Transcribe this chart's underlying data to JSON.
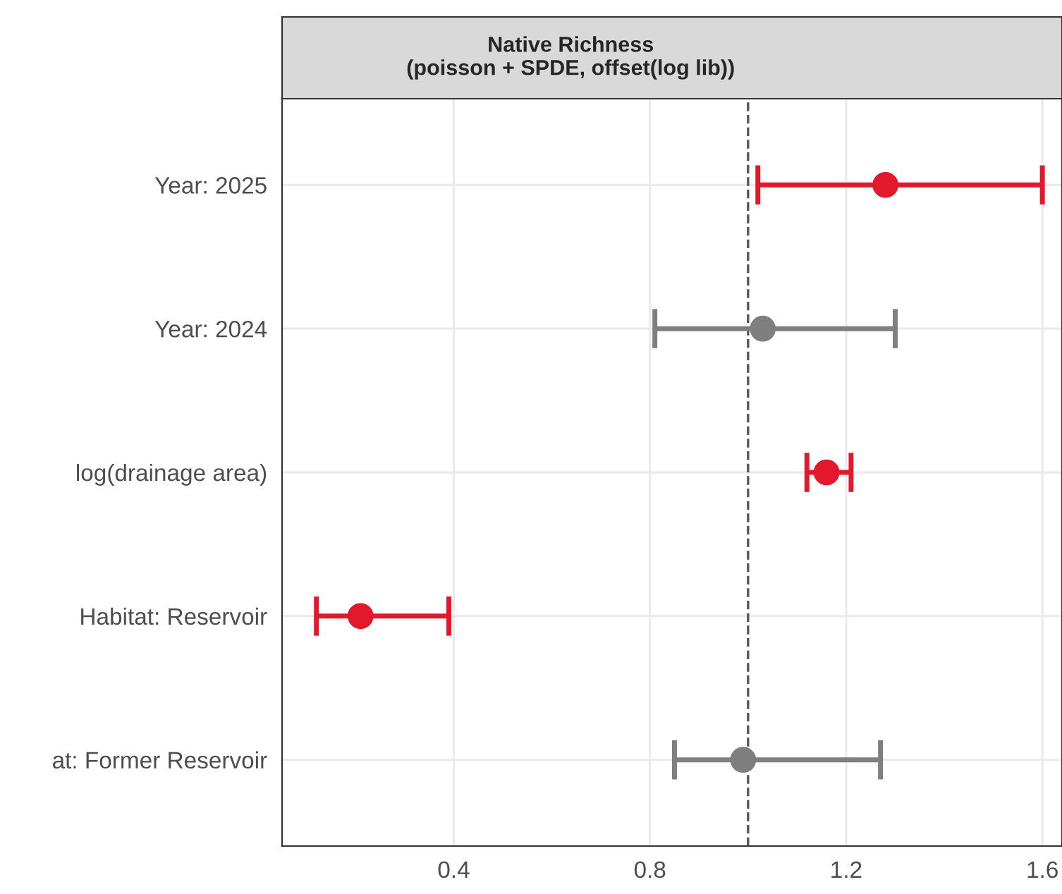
{
  "chart_data": {
    "type": "scatter",
    "orientation": "horizontal",
    "title": "Native Richness\n(poisson + SPDE, offset(log lib))",
    "categories": [
      "Year: 2025",
      "Year: 2024",
      "log(drainage area)",
      "Habitat: Reservoir",
      "at: Former Reservoir"
    ],
    "values": [
      1.28,
      1.03,
      1.16,
      0.21,
      0.99
    ],
    "errors": [
      [
        1.02,
        1.6
      ],
      [
        0.81,
        1.3
      ],
      [
        1.12,
        1.21
      ],
      [
        0.12,
        0.39
      ],
      [
        0.85,
        1.27
      ]
    ],
    "colors": [
      "#e3182d",
      "#7f7f7f",
      "#e3182d",
      "#e3182d",
      "#7f7f7f"
    ],
    "xlim": [
      0.05,
      1.64
    ],
    "xticks": [
      0.4,
      0.8,
      1.2,
      1.6
    ],
    "ref_lines": [
      {
        "axis": "x",
        "value": 1.0,
        "color": "#555555",
        "line_style": "dashed"
      }
    ],
    "grid": true,
    "marker": "circle"
  }
}
